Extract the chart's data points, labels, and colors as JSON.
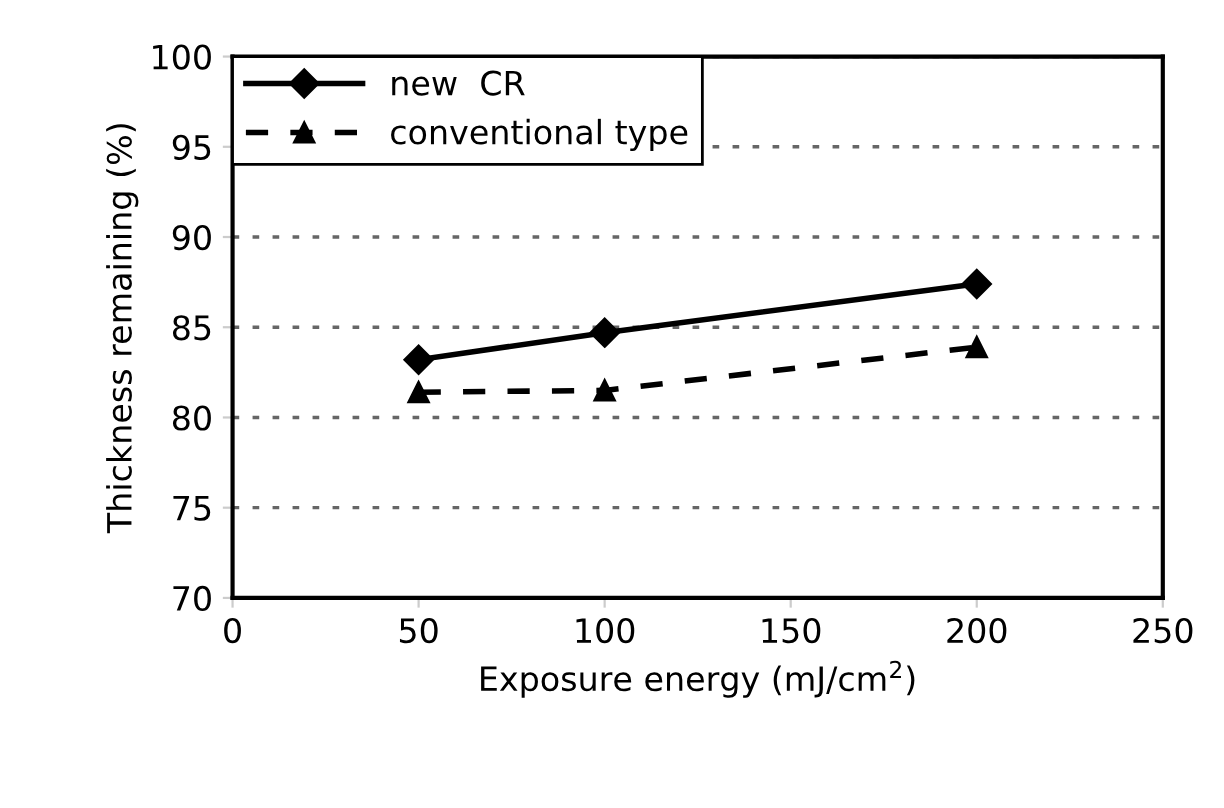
{
  "chart_data": {
    "type": "line",
    "xlabel": "Exposure energy (mJ/cm$^{2}$)",
    "ylabel": "Thickness remaining (%)",
    "x": [
      50,
      100,
      200
    ],
    "series": [
      {
        "name": "new  CR",
        "color": "#000000",
        "values": [
          83.2,
          84.7,
          87.4
        ],
        "marker": "diamond",
        "line_style": "solid"
      },
      {
        "name": "conventional type",
        "color": "#000000",
        "values": [
          81.4,
          81.5,
          83.9
        ],
        "marker": "triangle",
        "line_style": "dashed"
      }
    ],
    "xlim": [
      0,
      250
    ],
    "xticks": [
      0,
      50,
      100,
      150,
      200,
      250
    ],
    "ylim": [
      70,
      100
    ],
    "yticks": [
      70,
      75,
      80,
      85,
      90,
      95,
      100
    ],
    "grid": "y",
    "legend": "top left"
  }
}
